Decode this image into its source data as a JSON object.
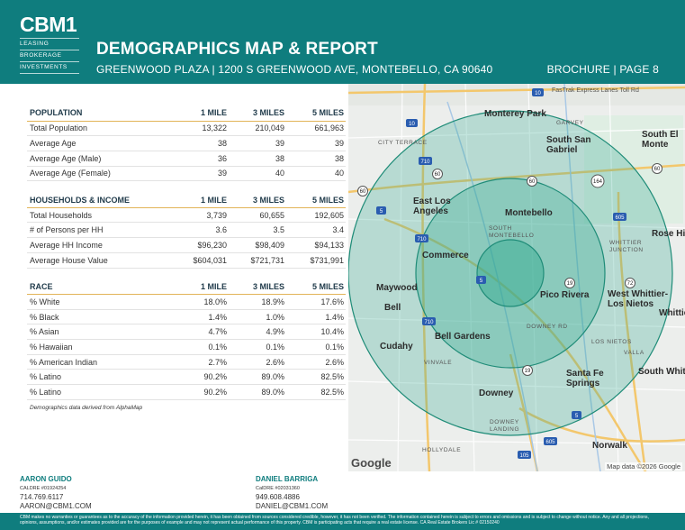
{
  "header": {
    "logo_main": "CBM1",
    "logo_lines": [
      "LEASING",
      "BROKERAGE",
      "INVESTMENTS"
    ],
    "title": "DEMOGRAPHICS MAP & REPORT",
    "subtitle": "GREENWOOD PLAZA | 1200 S GREENWOOD AVE, MONTEBELLO, CA 90640",
    "page_label": "BROCHURE | PAGE 8"
  },
  "tables": {
    "population": {
      "headers": [
        "POPULATION",
        "1 MILE",
        "3 MILES",
        "5 MILES"
      ],
      "rows": [
        [
          "Total Population",
          "13,322",
          "210,049",
          "661,963"
        ],
        [
          "Average Age",
          "38",
          "39",
          "39"
        ],
        [
          "Average Age (Male)",
          "36",
          "38",
          "38"
        ],
        [
          "Average Age (Female)",
          "39",
          "40",
          "40"
        ]
      ]
    },
    "households": {
      "headers": [
        "HOUSEHOLDS & INCOME",
        "1 MILE",
        "3 MILES",
        "5 MILES"
      ],
      "rows": [
        [
          "Total Households",
          "3,739",
          "60,655",
          "192,605"
        ],
        [
          "# of Persons per HH",
          "3.6",
          "3.5",
          "3.4"
        ],
        [
          "Average HH Income",
          "$96,230",
          "$98,409",
          "$94,133"
        ],
        [
          "Average House Value",
          "$604,031",
          "$721,731",
          "$731,991"
        ]
      ]
    },
    "race": {
      "headers": [
        "RACE",
        "1 MILE",
        "3 MILES",
        "5 MILES"
      ],
      "rows": [
        [
          "% White",
          "18.0%",
          "18.9%",
          "17.6%"
        ],
        [
          "% Black",
          "1.4%",
          "1.0%",
          "1.4%"
        ],
        [
          "% Asian",
          "4.7%",
          "4.9%",
          "10.4%"
        ],
        [
          "% Hawaiian",
          "0.1%",
          "0.1%",
          "0.1%"
        ],
        [
          "% American Indian",
          "2.7%",
          "2.6%",
          "2.6%"
        ],
        [
          "% Latino",
          "90.2%",
          "89.0%",
          "82.5%"
        ],
        [
          "% Latino",
          "90.2%",
          "89.0%",
          "82.5%"
        ]
      ]
    },
    "source_note": "Demographics data derived from AlphaMap"
  },
  "map": {
    "labels": {
      "monterey_park": "Monterey Park",
      "garvey": "GARVEY",
      "south_san_gabriel": "South San Gabriel",
      "south_el_monte": "South El Monte",
      "city_terrace": "CITY TERRACE",
      "east_los_angeles": "East Los Angeles",
      "montebello": "Montebello",
      "south_montebello": "SOUTH MONTEBELLO",
      "rose_hills": "Rose Hil",
      "whittier_junction": "WHITTIER JUNCTION",
      "commerce": "Commerce",
      "maywood": "Maywood",
      "bell": "Bell",
      "pico_rivera": "Pico Rivera",
      "west_whittier": "West Whittier-Los Nietos",
      "whittier": "Whittie",
      "downey_rd": "DOWNEY RD",
      "bell_gardens": "Bell Gardens",
      "cudahy": "Cudahy",
      "los_nietos": "LOS NIETOS",
      "valla": "VALLA",
      "vinvale": "VINVALE",
      "santa_fe_springs": "Santa Fe Springs",
      "south_whittier": "South Whitt",
      "downey": "Downey",
      "downey_landing": "DOWNEY LANDING",
      "hollydale": "HOLLYDALE",
      "norwalk": "Norwalk",
      "fastrak": "FasTrak Express Lanes Toll Rd"
    },
    "highway_shields": [
      "10",
      "10",
      "710",
      "60",
      "60",
      "60",
      "164",
      "5",
      "605",
      "710",
      "5",
      "19",
      "72",
      "710",
      "19",
      "5",
      "605",
      "105",
      "60"
    ],
    "google_logo": "Google",
    "attribution": "Map data ©2026 Google",
    "radius_colors": {
      "fill": "#2fa88f",
      "stroke": "#1f8c78"
    }
  },
  "contacts": [
    {
      "name": "AARON GUIDO",
      "license": "CALDRE #01924254",
      "phone": "714.769.6117",
      "email": "AARON@CBM1.COM"
    },
    {
      "name": "DANIEL BARRIGA",
      "license": "CalDRE #02031360",
      "phone": "949.608.4886",
      "email": "DANIEL@CBM1.COM"
    }
  ],
  "footer": {
    "disclaimer": "CBM makes no warranties or guarantees as to the accuracy of the information provided herein, it has been obtained from sources considered credible, however, it has not been verified. The information contained herein is subject to errors and omissions and is subject to change without notice. Any and all projections, opinions, assumptions, and/or estimates provided are for the purposes of example and may not represent actual performance of this property. CBM is participating acts that require a real estate license. CA Real Estate Brokers Lic # 02150240"
  },
  "colors": {
    "brand": "#0f7d7e",
    "accent": "#e2b458"
  }
}
